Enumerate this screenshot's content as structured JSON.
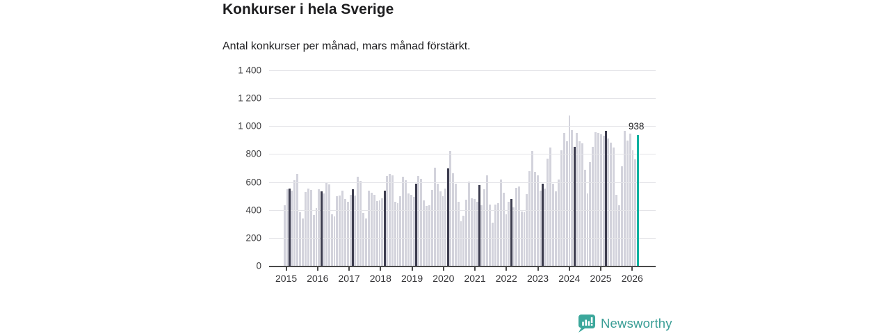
{
  "header": {
    "title": "Konkurser i hela Sverige",
    "subtitle": "Antal konkurser per månad, mars månad förstärkt."
  },
  "chart_data": {
    "type": "bar",
    "title": "Konkurser i hela Sverige",
    "subtitle": "Antal konkurser per månad, mars månad förstärkt.",
    "ylabel": "Antal konkurser per månad",
    "ylim": [
      0,
      1400
    ],
    "grid": true,
    "yticks": [
      0,
      200,
      400,
      600,
      800,
      1000,
      1200,
      1400
    ],
    "ytick_labels": [
      "0",
      "200",
      "400",
      "600",
      "800",
      "1 000",
      "1 200",
      "1 400"
    ],
    "xtick_labels": [
      "2015",
      "2016",
      "2017",
      "2018",
      "2019",
      "2020",
      "2021",
      "2022",
      "2023",
      "2024",
      "2025",
      "2026"
    ],
    "emphasized_month_index": 2,
    "series": [
      {
        "year": 2015,
        "values": [
          435,
          550,
          555,
          540,
          615,
          660,
          385,
          340,
          530,
          555,
          545,
          365
        ]
      },
      {
        "year": 2016,
        "values": [
          415,
          550,
          535,
          520,
          600,
          585,
          370,
          355,
          500,
          505,
          540,
          480
        ]
      },
      {
        "year": 2017,
        "values": [
          460,
          510,
          550,
          505,
          640,
          610,
          380,
          340,
          540,
          525,
          510,
          465
        ]
      },
      {
        "year": 2018,
        "values": [
          470,
          485,
          540,
          645,
          660,
          650,
          460,
          450,
          500,
          640,
          615,
          520
        ]
      },
      {
        "year": 2019,
        "values": [
          510,
          495,
          590,
          645,
          625,
          470,
          430,
          435,
          545,
          705,
          590,
          535
        ]
      },
      {
        "year": 2020,
        "values": [
          500,
          555,
          700,
          820,
          665,
          590,
          460,
          320,
          360,
          475,
          605,
          485
        ]
      },
      {
        "year": 2021,
        "values": [
          480,
          460,
          580,
          435,
          550,
          650,
          440,
          310,
          440,
          450,
          620,
          525
        ]
      },
      {
        "year": 2022,
        "values": [
          370,
          460,
          480,
          420,
          560,
          570,
          390,
          385,
          515,
          680,
          820,
          675
        ]
      },
      {
        "year": 2023,
        "values": [
          650,
          540,
          590,
          555,
          765,
          845,
          590,
          535,
          620,
          825,
          950,
          890
        ]
      },
      {
        "year": 2024,
        "values": [
          1075,
          970,
          850,
          950,
          890,
          875,
          690,
          520,
          740,
          850,
          955,
          950
        ]
      },
      {
        "year": 2025,
        "values": [
          940,
          930,
          965,
          910,
          880,
          845,
          510,
          435,
          715,
          965,
          895,
          945
        ]
      },
      {
        "year": 2026,
        "values": [
          825,
          760,
          938
        ]
      }
    ],
    "last_value_annotation": "938",
    "colors": {
      "bar": "#d3d3dc",
      "march_bar": "#3d3d4f",
      "highlight_bar": "#00b2a0",
      "gridline": "#e4e4e8",
      "axis": "#4a4a4a"
    }
  },
  "footer": {
    "brand": "Newsworthy",
    "brand_color": "#3a9e96"
  }
}
